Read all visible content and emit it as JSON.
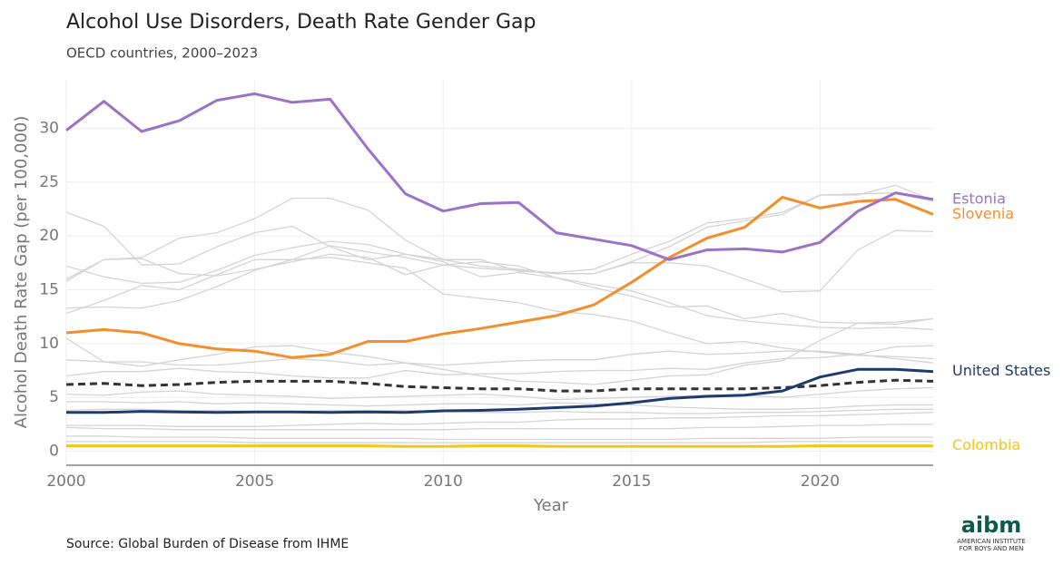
{
  "chart_data": {
    "type": "line",
    "title": "Alcohol Use Disorders, Death Rate Gender Gap",
    "subtitle": "OECD countries, 2000–2023",
    "x_label": "Year",
    "y_label": "Alcohol Death Rate Gap (per 100,000)",
    "source": "Source: Global Burden of Disease from IHME",
    "x": [
      2000,
      2001,
      2002,
      2003,
      2004,
      2005,
      2006,
      2007,
      2008,
      2009,
      2010,
      2011,
      2012,
      2013,
      2014,
      2015,
      2016,
      2017,
      2018,
      2019,
      2020,
      2021,
      2022,
      2023
    ],
    "xlim": [
      2000,
      2023
    ],
    "xticks": [
      2000,
      2005,
      2010,
      2015,
      2020
    ],
    "ylim": [
      -1.3,
      34.5
    ],
    "yticks": [
      0,
      5,
      10,
      15,
      20,
      25,
      30
    ],
    "grid": true,
    "series": [
      {
        "color": "#d4d4d4",
        "values": [
          22.2,
          20.9,
          17.3,
          17.4,
          19.0,
          20.3,
          20.9,
          19.0,
          17.8,
          18.3,
          17.8,
          17.2,
          16.9,
          16.5,
          16.5,
          17.6,
          19.0,
          20.8,
          21.4,
          22.0,
          23.8,
          23.8,
          24.7,
          23.3
        ]
      },
      {
        "color": "#d4d4d4",
        "values": [
          15.8,
          17.8,
          18.0,
          19.8,
          20.3,
          21.6,
          23.5,
          23.5,
          22.4,
          19.6,
          17.8,
          17.8,
          16.7,
          16.6,
          16.9,
          18.3,
          19.5,
          21.2,
          21.6,
          22.2,
          23.8,
          23.9,
          24.0,
          23.2
        ]
      },
      {
        "color": "#d4d4d4",
        "values": [
          17.2,
          16.2,
          15.6,
          15.7,
          16.8,
          18.2,
          18.9,
          19.5,
          19.2,
          18.3,
          17.6,
          16.2,
          16.6,
          16.1,
          15.5,
          14.9,
          13.8,
          12.6,
          12.1,
          11.8,
          11.5,
          11.4,
          11.5,
          11.3
        ]
      },
      {
        "color": "#d4d4d4",
        "values": [
          13.3,
          13.4,
          13.3,
          14.0,
          15.3,
          16.8,
          17.8,
          19.1,
          18.5,
          18.0,
          17.3,
          17.6,
          17.2,
          16.1,
          15.2,
          14.4,
          13.4,
          13.5,
          12.3,
          12.8,
          12.0,
          11.9,
          12.0,
          12.3
        ]
      },
      {
        "color": "#d4d4d4",
        "values": [
          12.8,
          14.0,
          15.4,
          15.0,
          16.4,
          17.8,
          17.8,
          18.0,
          17.5,
          17.0,
          14.6,
          14.2,
          13.8,
          13.0,
          12.7,
          12.1,
          11.0,
          10.0,
          10.2,
          9.6,
          9.2,
          8.9,
          8.8,
          8.6
        ]
      },
      {
        "color": "#d4d4d4",
        "values": [
          16.0,
          17.8,
          17.9,
          16.5,
          16.3,
          16.9,
          17.6,
          18.3,
          18.0,
          16.4,
          17.3,
          17.0,
          16.8,
          16.5,
          16.5,
          17.5,
          17.5,
          17.2,
          16.0,
          14.8,
          14.9,
          18.7,
          20.5,
          20.4
        ]
      },
      {
        "color": "#d4d4d4",
        "values": [
          10.5,
          8.3,
          7.9,
          8.5,
          9.0,
          9.7,
          9.8,
          9.2,
          8.8,
          8.2,
          7.6,
          7.0,
          6.5,
          6.4,
          6.2,
          6.6,
          7.0,
          7.1,
          8.0,
          8.4,
          10.3,
          11.9,
          11.8,
          12.3
        ]
      },
      {
        "color": "#d4d4d4",
        "values": [
          8.5,
          8.3,
          8.3,
          8.0,
          8.0,
          8.3,
          8.6,
          8.4,
          8.0,
          8.2,
          8.0,
          8.2,
          8.4,
          8.5,
          8.5,
          9.0,
          9.3,
          9.0,
          9.1,
          9.3,
          9.3,
          9.0,
          9.7,
          9.8
        ]
      },
      {
        "color": "#d4d4d4",
        "values": [
          7.0,
          7.4,
          7.4,
          7.7,
          7.4,
          7.3,
          7.0,
          6.8,
          6.8,
          7.5,
          7.1,
          7.2,
          7.2,
          7.4,
          7.5,
          7.5,
          7.7,
          7.6,
          8.2,
          8.6,
          8.7,
          9.0,
          8.6,
          8.2
        ]
      },
      {
        "color": "#d4d4d4",
        "values": [
          5.3,
          5.2,
          5.5,
          5.6,
          5.3,
          5.2,
          5.1,
          4.9,
          5.0,
          5.1,
          5.2,
          5.3,
          5.1,
          4.8,
          4.9,
          5.0,
          5.1,
          5.2,
          5.2,
          5.0,
          5.3,
          5.6,
          5.8,
          5.9
        ]
      },
      {
        "color": "#d4d4d4",
        "values": [
          4.6,
          4.6,
          4.5,
          4.6,
          4.4,
          4.5,
          4.4,
          4.3,
          4.2,
          4.3,
          4.4,
          4.4,
          4.3,
          4.5,
          4.4,
          4.3,
          4.1,
          4.0,
          3.9,
          3.9,
          4.0,
          4.2,
          4.3,
          4.3
        ]
      },
      {
        "color": "#d4d4d4",
        "values": [
          3.8,
          3.9,
          3.9,
          3.8,
          3.8,
          3.7,
          3.7,
          3.8,
          3.8,
          3.8,
          3.7,
          3.6,
          3.6,
          3.7,
          3.6,
          3.6,
          3.5,
          3.5,
          3.6,
          3.6,
          3.7,
          3.8,
          3.9,
          3.9
        ]
      },
      {
        "color": "#d4d4d4",
        "values": [
          2.4,
          2.4,
          2.4,
          2.3,
          2.3,
          2.3,
          2.4,
          2.5,
          2.6,
          2.5,
          2.6,
          2.7,
          2.7,
          2.9,
          3.0,
          3.0,
          3.1,
          3.1,
          3.2,
          3.3,
          3.3,
          3.4,
          3.5,
          3.6
        ]
      },
      {
        "color": "#d4d4d4",
        "values": [
          2.2,
          2.1,
          2.1,
          2.0,
          2.0,
          2.0,
          2.0,
          2.0,
          2.0,
          2.0,
          2.0,
          2.1,
          2.1,
          2.1,
          2.1,
          2.1,
          2.1,
          2.2,
          2.2,
          2.3,
          2.4,
          2.4,
          2.5,
          2.5
        ]
      },
      {
        "color": "#d4d4d4",
        "values": [
          1.4,
          1.4,
          1.3,
          1.3,
          1.3,
          1.2,
          1.2,
          1.2,
          1.2,
          1.2,
          1.1,
          1.1,
          1.1,
          1.1,
          1.1,
          1.1,
          1.1,
          1.2,
          1.2,
          1.2,
          1.2,
          1.3,
          1.3,
          1.3
        ]
      },
      {
        "color": "#d4d4d4",
        "values": [
          0.9,
          0.9,
          0.9,
          0.9,
          0.9,
          0.8,
          0.8,
          0.8,
          0.8,
          0.8,
          0.8,
          0.8,
          0.8,
          0.8,
          0.8,
          0.8,
          0.8,
          0.8,
          0.8,
          0.9,
          0.9,
          0.9,
          0.9,
          0.9
        ]
      },
      {
        "color": "#333333",
        "dashed": true,
        "values": [
          6.2,
          6.3,
          6.1,
          6.2,
          6.4,
          6.5,
          6.5,
          6.5,
          6.3,
          6.0,
          5.9,
          5.8,
          5.8,
          5.6,
          5.6,
          5.8,
          5.8,
          5.8,
          5.8,
          5.9,
          6.1,
          6.4,
          6.6,
          6.5
        ]
      },
      {
        "name": "Colombia",
        "color": "#f5c518",
        "values": [
          0.5,
          0.5,
          0.5,
          0.5,
          0.5,
          0.5,
          0.5,
          0.5,
          0.5,
          0.45,
          0.45,
          0.5,
          0.5,
          0.45,
          0.45,
          0.45,
          0.45,
          0.45,
          0.45,
          0.45,
          0.5,
          0.5,
          0.5,
          0.5
        ]
      },
      {
        "name": "United States",
        "color": "#1f3a6e",
        "values": [
          3.6,
          3.6,
          3.7,
          3.65,
          3.6,
          3.65,
          3.65,
          3.6,
          3.65,
          3.6,
          3.75,
          3.8,
          3.9,
          4.05,
          4.2,
          4.5,
          4.9,
          5.1,
          5.2,
          5.6,
          6.9,
          7.6,
          7.6,
          7.4
        ]
      },
      {
        "name": "Slovenia",
        "color": "#f28e2b",
        "values": [
          11.0,
          11.3,
          11.0,
          10.0,
          9.5,
          9.3,
          8.7,
          9.0,
          10.2,
          10.2,
          10.9,
          11.4,
          12.0,
          12.6,
          13.6,
          15.7,
          18.0,
          19.8,
          20.8,
          23.6,
          22.6,
          23.2,
          23.4,
          22.0
        ]
      },
      {
        "name": "Estonia",
        "color": "#9b72c6",
        "values": [
          29.8,
          32.5,
          29.7,
          30.7,
          32.6,
          33.2,
          32.4,
          32.7,
          28.1,
          23.9,
          22.3,
          23.0,
          23.1,
          20.3,
          19.7,
          19.1,
          17.8,
          18.7,
          18.8,
          18.5,
          19.4,
          22.3,
          24.0,
          23.4
        ]
      }
    ]
  },
  "logo": {
    "mark": "aibm",
    "line1": "AMERICAN INSTITUTE",
    "line2": "FOR BOYS AND MEN"
  }
}
